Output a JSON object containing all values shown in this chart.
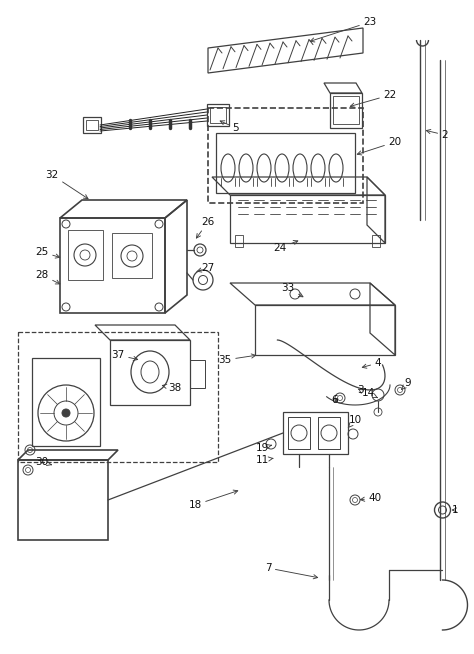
{
  "bg_color": "#ffffff",
  "lc": "#404040",
  "lc_dark": "#1a1a1a",
  "figsize": [
    4.74,
    6.54
  ],
  "dpi": 100
}
